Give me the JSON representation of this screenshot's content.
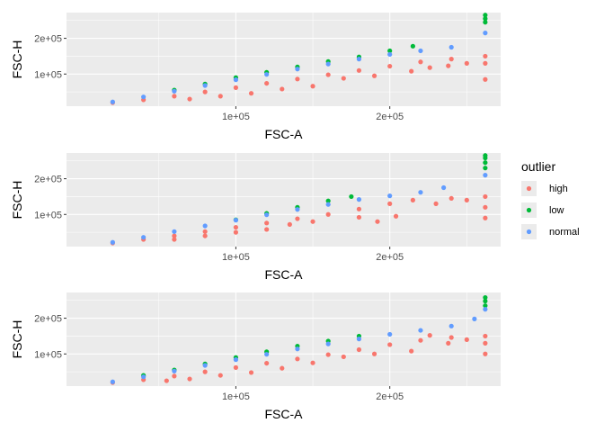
{
  "chart_data": [
    {
      "type": "scatter",
      "xlabel": "FSC-A",
      "ylabel": "FSC-H",
      "xlim": [
        -10000,
        272000
      ],
      "ylim": [
        10000,
        272000
      ],
      "xticks": [
        100000,
        200000
      ],
      "xtick_labels": [
        "1e+05",
        "2e+05"
      ],
      "yticks": [
        100000,
        200000
      ],
      "ytick_labels": [
        "1e+05",
        "2e+05"
      ],
      "grid": true,
      "series": [
        {
          "name": "high",
          "color": "#F8766D",
          "points": [
            [
              20000,
              20000
            ],
            [
              40000,
              28000
            ],
            [
              60000,
              38000
            ],
            [
              80000,
              50000
            ],
            [
              100000,
              62000
            ],
            [
              120000,
              74000
            ],
            [
              140000,
              86000
            ],
            [
              160000,
              98000
            ],
            [
              180000,
              110000
            ],
            [
              200000,
              122000
            ],
            [
              220000,
              134000
            ],
            [
              240000,
              142000
            ],
            [
              262000,
              150000
            ],
            [
              262000,
              85000
            ],
            [
              262000,
              130000
            ],
            [
              250000,
              130000
            ],
            [
              238000,
              123000
            ],
            [
              226000,
              118000
            ],
            [
              214000,
              108000
            ],
            [
              190000,
              95000
            ],
            [
              170000,
              88000
            ],
            [
              150000,
              66000
            ],
            [
              130000,
              58000
            ],
            [
              110000,
              46000
            ],
            [
              90000,
              38000
            ],
            [
              70000,
              30000
            ]
          ]
        },
        {
          "name": "low",
          "color": "#00BA38",
          "points": [
            [
              60000,
              55000
            ],
            [
              80000,
              72000
            ],
            [
              100000,
              90000
            ],
            [
              120000,
              105000
            ],
            [
              140000,
              120000
            ],
            [
              160000,
              135000
            ],
            [
              180000,
              148000
            ],
            [
              200000,
              165000
            ],
            [
              215000,
              178000
            ],
            [
              262000,
              245000
            ],
            [
              262000,
              255000
            ],
            [
              262000,
              265000
            ]
          ]
        },
        {
          "name": "normal",
          "color": "#619CFF",
          "points": [
            [
              20000,
              22000
            ],
            [
              40000,
              36000
            ],
            [
              60000,
              52000
            ],
            [
              80000,
              68000
            ],
            [
              100000,
              84000
            ],
            [
              120000,
              99000
            ],
            [
              140000,
              114000
            ],
            [
              160000,
              128000
            ],
            [
              180000,
              142000
            ],
            [
              200000,
              155000
            ],
            [
              220000,
              165000
            ],
            [
              240000,
              175000
            ],
            [
              262000,
              215000
            ]
          ]
        }
      ]
    },
    {
      "type": "scatter",
      "xlabel": "FSC-A",
      "ylabel": "FSC-H",
      "xlim": [
        -10000,
        272000
      ],
      "ylim": [
        10000,
        272000
      ],
      "xticks": [
        100000,
        200000
      ],
      "xtick_labels": [
        "1e+05",
        "2e+05"
      ],
      "yticks": [
        100000,
        200000
      ],
      "ytick_labels": [
        "1e+05",
        "2e+05"
      ],
      "grid": true,
      "series": [
        {
          "name": "high",
          "color": "#F8766D",
          "points": [
            [
              20000,
              20000
            ],
            [
              40000,
              30000
            ],
            [
              60000,
              40000
            ],
            [
              80000,
              52000
            ],
            [
              100000,
              64000
            ],
            [
              120000,
              76000
            ],
            [
              140000,
              88000
            ],
            [
              160000,
              100000
            ],
            [
              180000,
              115000
            ],
            [
              200000,
              130000
            ],
            [
              215000,
              140000
            ],
            [
              230000,
              130000
            ],
            [
              240000,
              145000
            ],
            [
              250000,
              140000
            ],
            [
              262000,
              150000
            ],
            [
              262000,
              90000
            ],
            [
              262000,
              120000
            ],
            [
              204000,
              95000
            ],
            [
              192000,
              80000
            ],
            [
              180000,
              92000
            ],
            [
              150000,
              80000
            ],
            [
              135000,
              72000
            ],
            [
              120000,
              58000
            ],
            [
              100000,
              50000
            ],
            [
              80000,
              40000
            ],
            [
              60000,
              30000
            ]
          ]
        },
        {
          "name": "low",
          "color": "#00BA38",
          "points": [
            [
              100000,
              85000
            ],
            [
              120000,
              103000
            ],
            [
              140000,
              120000
            ],
            [
              160000,
              138000
            ],
            [
              175000,
              150000
            ],
            [
              262000,
              230000
            ],
            [
              262000,
              245000
            ],
            [
              262000,
              258000
            ],
            [
              262000,
              265000
            ]
          ]
        },
        {
          "name": "normal",
          "color": "#619CFF",
          "points": [
            [
              20000,
              22000
            ],
            [
              40000,
              36000
            ],
            [
              60000,
              52000
            ],
            [
              80000,
              68000
            ],
            [
              100000,
              84000
            ],
            [
              120000,
              99000
            ],
            [
              140000,
              114000
            ],
            [
              160000,
              128000
            ],
            [
              180000,
              142000
            ],
            [
              200000,
              152000
            ],
            [
              220000,
              162000
            ],
            [
              235000,
              175000
            ],
            [
              262000,
              210000
            ]
          ]
        }
      ]
    },
    {
      "type": "scatter",
      "xlabel": "FSC-A",
      "ylabel": "FSC-H",
      "xlim": [
        -10000,
        272000
      ],
      "ylim": [
        10000,
        272000
      ],
      "xticks": [
        100000,
        200000
      ],
      "xtick_labels": [
        "1e+05",
        "2e+05"
      ],
      "yticks": [
        100000,
        200000
      ],
      "ytick_labels": [
        "1e+05",
        "2e+05"
      ],
      "grid": true,
      "series": [
        {
          "name": "high",
          "color": "#F8766D",
          "points": [
            [
              20000,
              20000
            ],
            [
              40000,
              28000
            ],
            [
              60000,
              38000
            ],
            [
              80000,
              50000
            ],
            [
              100000,
              62000
            ],
            [
              120000,
              74000
            ],
            [
              140000,
              86000
            ],
            [
              160000,
              98000
            ],
            [
              180000,
              112000
            ],
            [
              200000,
              126000
            ],
            [
              220000,
              138000
            ],
            [
              240000,
              146000
            ],
            [
              262000,
              150000
            ],
            [
              262000,
              100000
            ],
            [
              262000,
              130000
            ],
            [
              250000,
              140000
            ],
            [
              238000,
              130000
            ],
            [
              226000,
              152000
            ],
            [
              214000,
              108000
            ],
            [
              190000,
              100000
            ],
            [
              170000,
              92000
            ],
            [
              150000,
              75000
            ],
            [
              130000,
              60000
            ],
            [
              110000,
              48000
            ],
            [
              90000,
              40000
            ],
            [
              70000,
              30000
            ],
            [
              55000,
              25000
            ]
          ]
        },
        {
          "name": "low",
          "color": "#00BA38",
          "points": [
            [
              40000,
              40000
            ],
            [
              60000,
              55000
            ],
            [
              80000,
              72000
            ],
            [
              100000,
              90000
            ],
            [
              120000,
              106000
            ],
            [
              140000,
              122000
            ],
            [
              160000,
              136000
            ],
            [
              180000,
              150000
            ],
            [
              262000,
              235000
            ],
            [
              262000,
              248000
            ],
            [
              262000,
              258000
            ]
          ]
        },
        {
          "name": "normal",
          "color": "#619CFF",
          "points": [
            [
              20000,
              22000
            ],
            [
              40000,
              36000
            ],
            [
              60000,
              52000
            ],
            [
              80000,
              68000
            ],
            [
              100000,
              84000
            ],
            [
              120000,
              99000
            ],
            [
              140000,
              114000
            ],
            [
              160000,
              128000
            ],
            [
              180000,
              142000
            ],
            [
              200000,
              155000
            ],
            [
              220000,
              166000
            ],
            [
              240000,
              178000
            ],
            [
              255000,
              198000
            ],
            [
              262000,
              225000
            ]
          ]
        }
      ]
    }
  ],
  "legend": {
    "title": "outlier",
    "items": [
      {
        "label": "high",
        "color": "#F8766D"
      },
      {
        "label": "low",
        "color": "#00BA38"
      },
      {
        "label": "normal",
        "color": "#619CFF"
      }
    ]
  }
}
